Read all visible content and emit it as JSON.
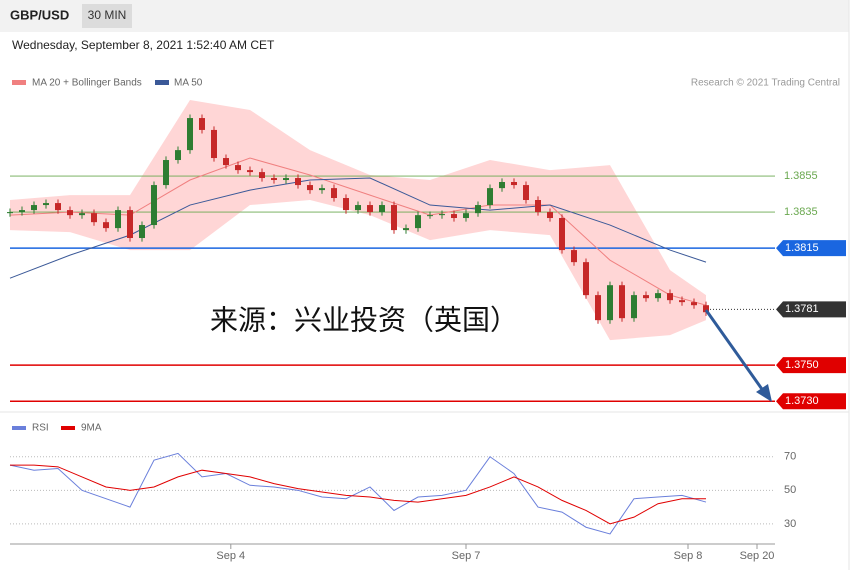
{
  "header": {
    "symbol": "GBP/USD",
    "interval": "30 MIN",
    "timestamp": "Wednesday, September 8, 2021 1:52:40 AM CET"
  },
  "chart_data": [
    {
      "type": "candlestick",
      "credit": "Research © 2021 Trading Central",
      "annotation": "来源：兴业投资（英国）",
      "up_color": "#2e7d32",
      "down_color": "#c62828",
      "xlim": [
        0,
        63.75
      ],
      "ylim": [
        1.3724,
        1.39
      ],
      "open": [
        1.38344,
        1.3835,
        1.38361,
        1.38389,
        1.384,
        1.38361,
        1.38333,
        1.38344,
        1.38294,
        1.38261,
        1.38361,
        1.38206,
        1.38278,
        1.385,
        1.38639,
        1.38694,
        1.38872,
        1.38806,
        1.3865,
        1.38611,
        1.38583,
        1.38572,
        1.38539,
        1.38528,
        1.38539,
        1.385,
        1.38472,
        1.38483,
        1.38428,
        1.38361,
        1.38389,
        1.3835,
        1.38389,
        1.3825,
        1.38261,
        1.38333,
        1.38333,
        1.38339,
        1.38317,
        1.38344,
        1.38389,
        1.38483,
        1.38517,
        1.385,
        1.38417,
        1.3835,
        1.38317,
        1.38139,
        1.38072,
        1.37889,
        1.3775,
        1.37944,
        1.37761,
        1.37889,
        1.37872,
        1.379,
        1.37861,
        1.3785,
        1.37833
      ],
      "high": [
        1.3837,
        1.38381,
        1.38409,
        1.3842,
        1.3842,
        1.38381,
        1.38364,
        1.38364,
        1.38314,
        1.38381,
        1.38381,
        1.38298,
        1.3852,
        1.38659,
        1.38714,
        1.38892,
        1.38892,
        1.38826,
        1.3867,
        1.38631,
        1.38603,
        1.38592,
        1.38559,
        1.38559,
        1.38559,
        1.3852,
        1.38503,
        1.38503,
        1.38448,
        1.38409,
        1.38409,
        1.38409,
        1.38409,
        1.38281,
        1.38353,
        1.38353,
        1.38359,
        1.38359,
        1.38364,
        1.38409,
        1.38503,
        1.38537,
        1.38537,
        1.3852,
        1.38437,
        1.3837,
        1.38337,
        1.38159,
        1.38092,
        1.37909,
        1.37964,
        1.37964,
        1.37909,
        1.37909,
        1.3792,
        1.3792,
        1.37881,
        1.3787,
        1.37853
      ],
      "low": [
        1.38324,
        1.3833,
        1.38341,
        1.38369,
        1.38341,
        1.38313,
        1.38313,
        1.38274,
        1.38241,
        1.38241,
        1.38186,
        1.38186,
        1.38258,
        1.3848,
        1.38619,
        1.38674,
        1.38786,
        1.3863,
        1.38591,
        1.38563,
        1.38552,
        1.38519,
        1.38508,
        1.38508,
        1.3848,
        1.38452,
        1.38452,
        1.38408,
        1.38341,
        1.38341,
        1.3833,
        1.3833,
        1.3823,
        1.3823,
        1.38241,
        1.38313,
        1.38313,
        1.38297,
        1.38297,
        1.38324,
        1.38369,
        1.38463,
        1.3848,
        1.38397,
        1.3833,
        1.38297,
        1.38119,
        1.38052,
        1.37869,
        1.3773,
        1.3773,
        1.37741,
        1.37741,
        1.37852,
        1.37852,
        1.37841,
        1.3783,
        1.37813,
        1.37774
      ],
      "close": [
        1.3835,
        1.38361,
        1.38389,
        1.384,
        1.38361,
        1.38333,
        1.38344,
        1.38294,
        1.38261,
        1.38361,
        1.38206,
        1.38278,
        1.385,
        1.38639,
        1.38694,
        1.38872,
        1.38806,
        1.3865,
        1.38611,
        1.38583,
        1.38572,
        1.38539,
        1.38528,
        1.38539,
        1.385,
        1.38472,
        1.38483,
        1.38428,
        1.38361,
        1.38389,
        1.3835,
        1.38389,
        1.3825,
        1.38261,
        1.38333,
        1.38333,
        1.38339,
        1.38317,
        1.38344,
        1.38389,
        1.38483,
        1.38517,
        1.385,
        1.38417,
        1.3835,
        1.38317,
        1.38139,
        1.38072,
        1.37889,
        1.3775,
        1.37944,
        1.37761,
        1.37889,
        1.37872,
        1.379,
        1.37861,
        1.3785,
        1.37833,
        1.37794
      ],
      "series": [
        {
          "name": "MA 20 + Bollinger Bands",
          "color": "#f08080",
          "band_color": "#ffd6d6",
          "x": [
            0,
            5,
            10,
            15,
            20,
            25,
            30,
            35,
            40,
            45,
            50,
            55,
            58
          ],
          "values": [
            1.38333,
            1.3835,
            1.38333,
            1.38528,
            1.3865,
            1.38556,
            1.38444,
            1.38333,
            1.38389,
            1.38389,
            1.38083,
            1.37889,
            1.37833
          ],
          "upper": [
            1.38417,
            1.38444,
            1.38444,
            1.38972,
            1.38917,
            1.38694,
            1.38556,
            1.38528,
            1.38639,
            1.38583,
            1.38611,
            1.38028,
            1.37889
          ],
          "lower": [
            1.3825,
            1.38239,
            1.38139,
            1.38139,
            1.38389,
            1.38417,
            1.38333,
            1.38194,
            1.3825,
            1.38222,
            1.37639,
            1.37667,
            1.3775
          ]
        },
        {
          "name": "MA 50",
          "color": "#3b5998",
          "x": [
            0,
            5,
            10,
            15,
            20,
            25,
            30,
            35,
            40,
            45,
            50,
            55,
            58
          ],
          "values": [
            1.37983,
            1.38111,
            1.38222,
            1.38389,
            1.38472,
            1.38528,
            1.38539,
            1.38389,
            1.38361,
            1.38389,
            1.38278,
            1.38139,
            1.38072
          ]
        }
      ],
      "levels": [
        {
          "value": 1.3855,
          "label": "1.3855",
          "color": "#6aa84f",
          "style": "thin"
        },
        {
          "value": 1.3835,
          "label": "1.3835",
          "color": "#6aa84f",
          "style": "thin"
        },
        {
          "value": 1.3815,
          "label": "1.3815",
          "color": "#1a66e0",
          "style": "box"
        },
        {
          "value": 1.3781,
          "label": "1.3781",
          "color": "#333333",
          "style": "current"
        },
        {
          "value": 1.375,
          "label": "1.3750",
          "color": "#e00000",
          "style": "box"
        },
        {
          "value": 1.373,
          "label": "1.3730",
          "color": "#e00000",
          "style": "box"
        }
      ]
    },
    {
      "type": "line",
      "xlim": [
        0,
        63.75
      ],
      "ylim": [
        18,
        80
      ],
      "yticks": [
        70,
        50,
        30
      ],
      "grid": true,
      "xticks": [
        {
          "value": 18.4,
          "label": "Sep 4"
        },
        {
          "value": 38,
          "label": "Sep 7"
        },
        {
          "value": 56.5,
          "label": "Sep 8"
        },
        {
          "value": 62.25,
          "label": "Sep 20"
        }
      ],
      "x": [
        0,
        2,
        4,
        6,
        8,
        10,
        12,
        14,
        16,
        18,
        20,
        22,
        24,
        26,
        28,
        30,
        32,
        34,
        36,
        38,
        40,
        42,
        44,
        46,
        48,
        50,
        52,
        54,
        56,
        58
      ],
      "series": [
        {
          "name": "RSI",
          "color": "#6a7fdb",
          "values": [
            65,
            62,
            63,
            50,
            45,
            40,
            68,
            72,
            58,
            60,
            53,
            52,
            50,
            46,
            45,
            52,
            38,
            46,
            47,
            50,
            70,
            60,
            40,
            37,
            28,
            24,
            45,
            46,
            47,
            43
          ]
        },
        {
          "name": "9MA",
          "color": "#e00000",
          "values": [
            65,
            65,
            64,
            58,
            52,
            50,
            52,
            58,
            62,
            60,
            58,
            54,
            51,
            49,
            47,
            46,
            44,
            43,
            45,
            47,
            52,
            58,
            52,
            44,
            38,
            30,
            34,
            42,
            45,
            45
          ]
        }
      ]
    }
  ]
}
